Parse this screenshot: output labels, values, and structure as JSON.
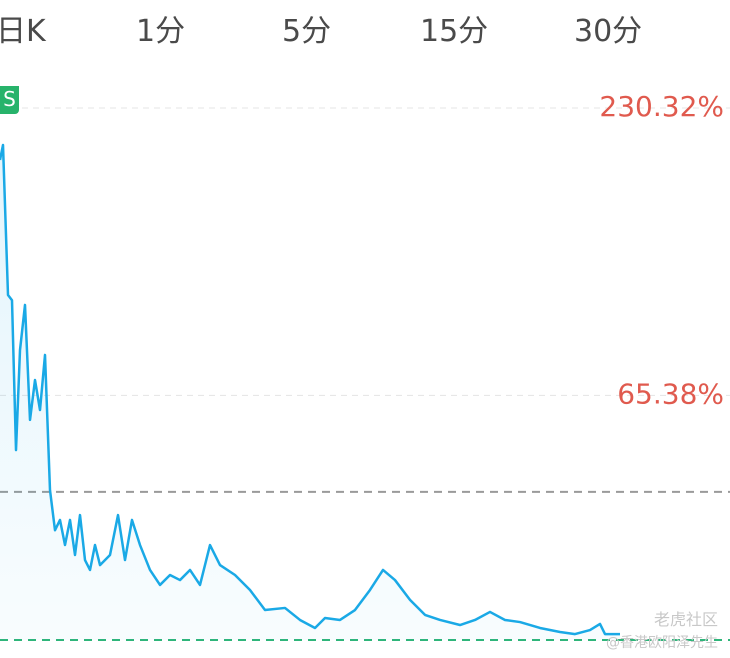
{
  "tabs": [
    "日K",
    "1分",
    "5分",
    "15分",
    "30分"
  ],
  "badge": "S",
  "watermark": {
    "logo": "老虎社区",
    "author": "@香港欧阳泽先生"
  },
  "chart_data": {
    "type": "line",
    "x": [
      0,
      3,
      8,
      12,
      16,
      20,
      25,
      30,
      35,
      40,
      45,
      50,
      55,
      60,
      65,
      70,
      75,
      80,
      85,
      90,
      95,
      100,
      110,
      118,
      125,
      132,
      140,
      150,
      160,
      170,
      180,
      190,
      200,
      210,
      220,
      235,
      250,
      265,
      285,
      300,
      315,
      325,
      340,
      355,
      370,
      383,
      395,
      410,
      425,
      440,
      460,
      475,
      490,
      505,
      520,
      540,
      560,
      575,
      590,
      600,
      605,
      620
    ],
    "series": [
      {
        "color": "#1aa9e6",
        "values": [
          200.5,
          209.1,
          123,
          120,
          34,
          91.4,
          117.3,
          51.3,
          74.2,
          57,
          88.6,
          11,
          -12,
          -6.1,
          -20.5,
          -6.1,
          -26.2,
          -3.3,
          -29.1,
          -34.8,
          -20.5,
          -32,
          -26.2,
          -3.3,
          -29.1,
          -6.1,
          -20.5,
          -34.8,
          -43.4,
          -37.7,
          -40.6,
          -34.8,
          -43.4,
          -20.5,
          -32,
          -37.7,
          -46.3,
          -57.8,
          -56.6,
          -63.5,
          -68.1,
          -62.4,
          -63.5,
          -57.8,
          -46.3,
          -34.8,
          -40.6,
          -52,
          -60.6,
          -63.5,
          -66.4,
          -63.5,
          -58.9,
          -63.5,
          -64.7,
          -68.1,
          -70.4,
          -71.6,
          -69.3,
          -65.8,
          -71.6,
          -71.6
        ]
      }
    ],
    "xlim": [
      0,
      730
    ],
    "ylim": [
      -75,
      230.32
    ],
    "yticks": [
      {
        "value": 230.32,
        "label": "230.32%"
      },
      {
        "value": 65.38,
        "label": "65.38%"
      }
    ],
    "tick_color": "#e05a4e",
    "reference_lines": [
      {
        "value": 10,
        "color": "#9a9a9a"
      },
      {
        "value": -75,
        "color": "#2fb57a"
      }
    ],
    "grid": true
  }
}
